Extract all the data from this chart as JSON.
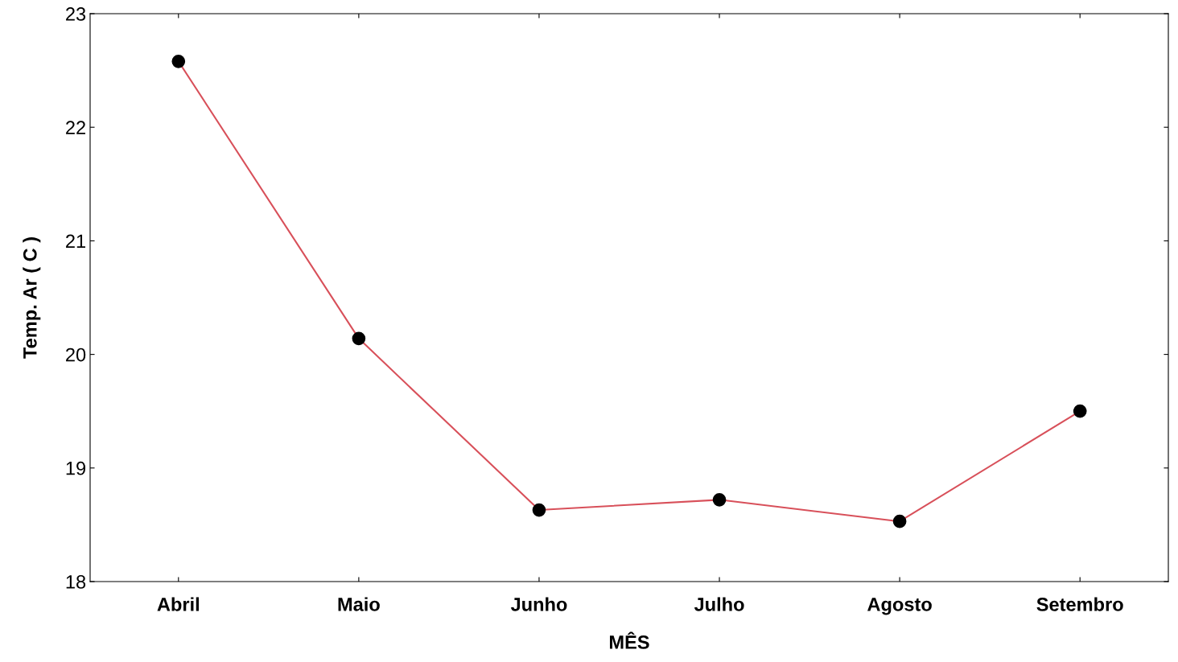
{
  "chart_data": {
    "type": "line",
    "xlabel": "MÊS",
    "ylabel": "Temp. Ar ( C )",
    "categories": [
      "Abril",
      "Maio",
      "Junho",
      "Julho",
      "Agosto",
      "Setembro"
    ],
    "series": [
      {
        "color": "#d8505a",
        "values": [
          22.58,
          20.14,
          18.63,
          18.72,
          18.53,
          19.5
        ]
      }
    ],
    "ylim": [
      18,
      23
    ],
    "yticks": [
      18,
      19,
      20,
      21,
      22,
      23
    ],
    "marker": "circle",
    "line_style": "solid",
    "grid": false,
    "legend": false
  }
}
